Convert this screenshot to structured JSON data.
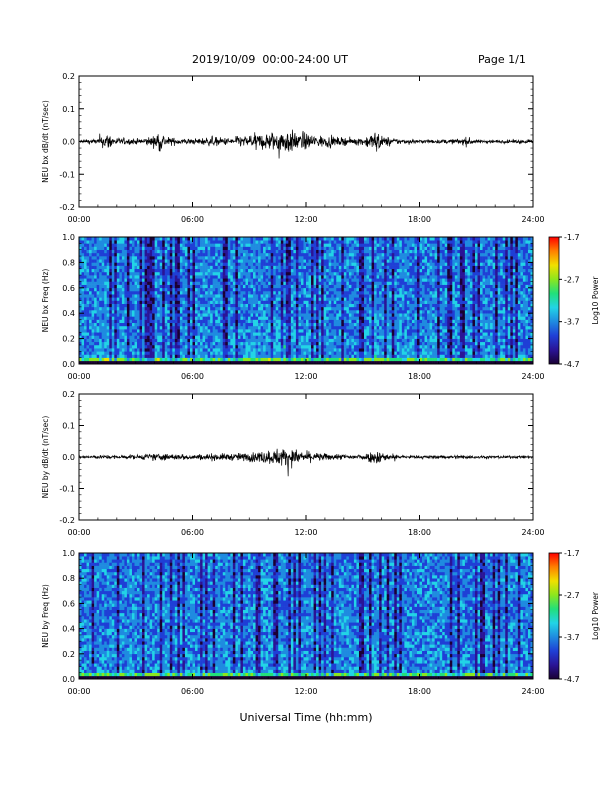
{
  "header": {
    "title": "2019/10/09  00:00-24:00 UT",
    "page": "Page 1/1"
  },
  "colors": {
    "trace": "#000000",
    "colormap": [
      "#1a0033",
      "#2a1496",
      "#1f3fd6",
      "#1f8be0",
      "#22d4e6",
      "#22e07a",
      "#8ce61e",
      "#f0e000",
      "#ff8000",
      "#ff0000"
    ]
  },
  "chart_data": [
    {
      "type": "line",
      "ylabel": "NEU bx dB/dt (nT/sec)",
      "ylim": [
        -0.2,
        0.2
      ],
      "yticks": [
        "-0.2",
        "-0.1",
        "0.0",
        "0.1",
        "0.2"
      ],
      "xlim": [
        "00:00",
        "24:00"
      ],
      "xticks": [
        "00:00",
        "06:00",
        "12:00",
        "18:00",
        "24:00"
      ],
      "series": [
        {
          "x": [
            "00:00",
            "01:00",
            "01:30",
            "02:00",
            "03:00",
            "04:00",
            "04:10",
            "04:30",
            "05:00",
            "06:00",
            "07:00",
            "08:00",
            "09:00",
            "10:00",
            "10:30",
            "11:00",
            "11:30",
            "12:00",
            "13:00",
            "14:00",
            "15:00",
            "15:48",
            "16:00",
            "17:00",
            "18:00",
            "19:00",
            "20:00",
            "20:30",
            "21:00",
            "22:00",
            "23:00",
            "24:00"
          ],
          "amplitude": [
            0.01,
            0.015,
            0.05,
            0.02,
            0.015,
            0.03,
            0.07,
            0.03,
            0.02,
            0.015,
            0.025,
            0.02,
            0.035,
            0.05,
            0.06,
            0.07,
            0.05,
            0.045,
            0.03,
            0.02,
            0.02,
            0.065,
            0.03,
            0.015,
            0.01,
            0.01,
            0.015,
            0.025,
            0.01,
            0.01,
            0.01,
            0.01
          ]
        }
      ]
    },
    {
      "type": "heatmap",
      "ylabel": "NEU bx Freq (Hz)",
      "ylim": [
        0.0,
        1.0
      ],
      "yticks": [
        "0.0",
        "0.2",
        "0.4",
        "0.6",
        "0.8",
        "1.0"
      ],
      "xlim": [
        "00:00",
        "24:00"
      ],
      "xticks": [
        "00:00",
        "06:00",
        "12:00",
        "18:00",
        "24:00"
      ],
      "colorbar": {
        "label": "Log10 Power",
        "range": [
          -4.7,
          -1.7
        ],
        "ticks": [
          "-1.7",
          "-2.7",
          "-3.7",
          "-4.7"
        ]
      }
    },
    {
      "type": "line",
      "ylabel": "NEU by dB/dt (nT/sec)",
      "ylim": [
        -0.2,
        0.2
      ],
      "yticks": [
        "-0.2",
        "-0.1",
        "0.0",
        "0.1",
        "0.2"
      ],
      "xlim": [
        "00:00",
        "24:00"
      ],
      "xticks": [
        "00:00",
        "06:00",
        "12:00",
        "18:00",
        "24:00"
      ],
      "series": [
        {
          "x": [
            "00:00",
            "01:00",
            "02:00",
            "03:00",
            "04:00",
            "05:00",
            "06:00",
            "07:00",
            "08:00",
            "09:00",
            "10:00",
            "10:30",
            "11:00",
            "11:30",
            "12:00",
            "13:00",
            "14:00",
            "15:00",
            "15:48",
            "16:00",
            "17:00",
            "18:00",
            "19:00",
            "20:00",
            "21:00",
            "22:00",
            "23:00",
            "24:00"
          ],
          "amplitude": [
            0.008,
            0.01,
            0.01,
            0.012,
            0.02,
            0.018,
            0.015,
            0.02,
            0.02,
            0.025,
            0.04,
            0.05,
            0.055,
            0.04,
            0.03,
            0.02,
            0.015,
            0.015,
            0.045,
            0.025,
            0.01,
            0.008,
            0.01,
            0.01,
            0.01,
            0.008,
            0.008,
            0.008
          ]
        }
      ]
    },
    {
      "type": "heatmap",
      "ylabel": "NEU by Freq (Hz)",
      "ylim": [
        0.0,
        1.0
      ],
      "yticks": [
        "0.0",
        "0.2",
        "0.4",
        "0.6",
        "0.8",
        "1.0"
      ],
      "xlim": [
        "00:00",
        "24:00"
      ],
      "xticks": [
        "00:00",
        "06:00",
        "12:00",
        "18:00",
        "24:00"
      ],
      "xlabel": "Universal Time (hh:mm)",
      "colorbar": {
        "label": "Log10 Power",
        "range": [
          -4.7,
          -1.7
        ],
        "ticks": [
          "-1.7",
          "-2.7",
          "-3.7",
          "-4.7"
        ]
      }
    }
  ]
}
